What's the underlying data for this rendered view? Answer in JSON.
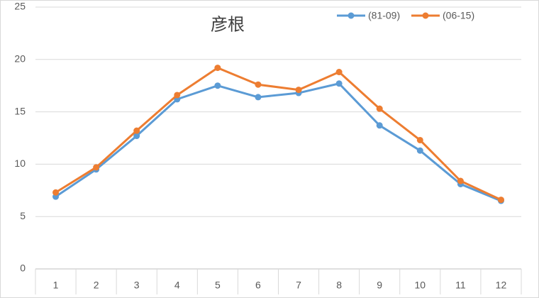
{
  "chart_data": {
    "type": "line",
    "title": "彦根",
    "categories": [
      "1",
      "2",
      "3",
      "4",
      "5",
      "6",
      "7",
      "8",
      "9",
      "10",
      "11",
      "12"
    ],
    "series": [
      {
        "name": "(81-09)",
        "color": "#5b9bd5",
        "values": [
          6.9,
          9.5,
          12.7,
          16.2,
          17.5,
          16.4,
          16.8,
          17.7,
          13.7,
          11.3,
          8.1,
          6.5
        ]
      },
      {
        "name": "(06-15)",
        "color": "#ed7d31",
        "values": [
          7.3,
          9.7,
          13.2,
          16.6,
          19.2,
          17.6,
          17.1,
          18.8,
          15.3,
          12.3,
          8.4,
          6.6
        ]
      }
    ],
    "ylim": [
      0,
      25
    ],
    "yticks": [
      0,
      5,
      10,
      15,
      20,
      25
    ],
    "grid": true,
    "legend": "top-right"
  }
}
